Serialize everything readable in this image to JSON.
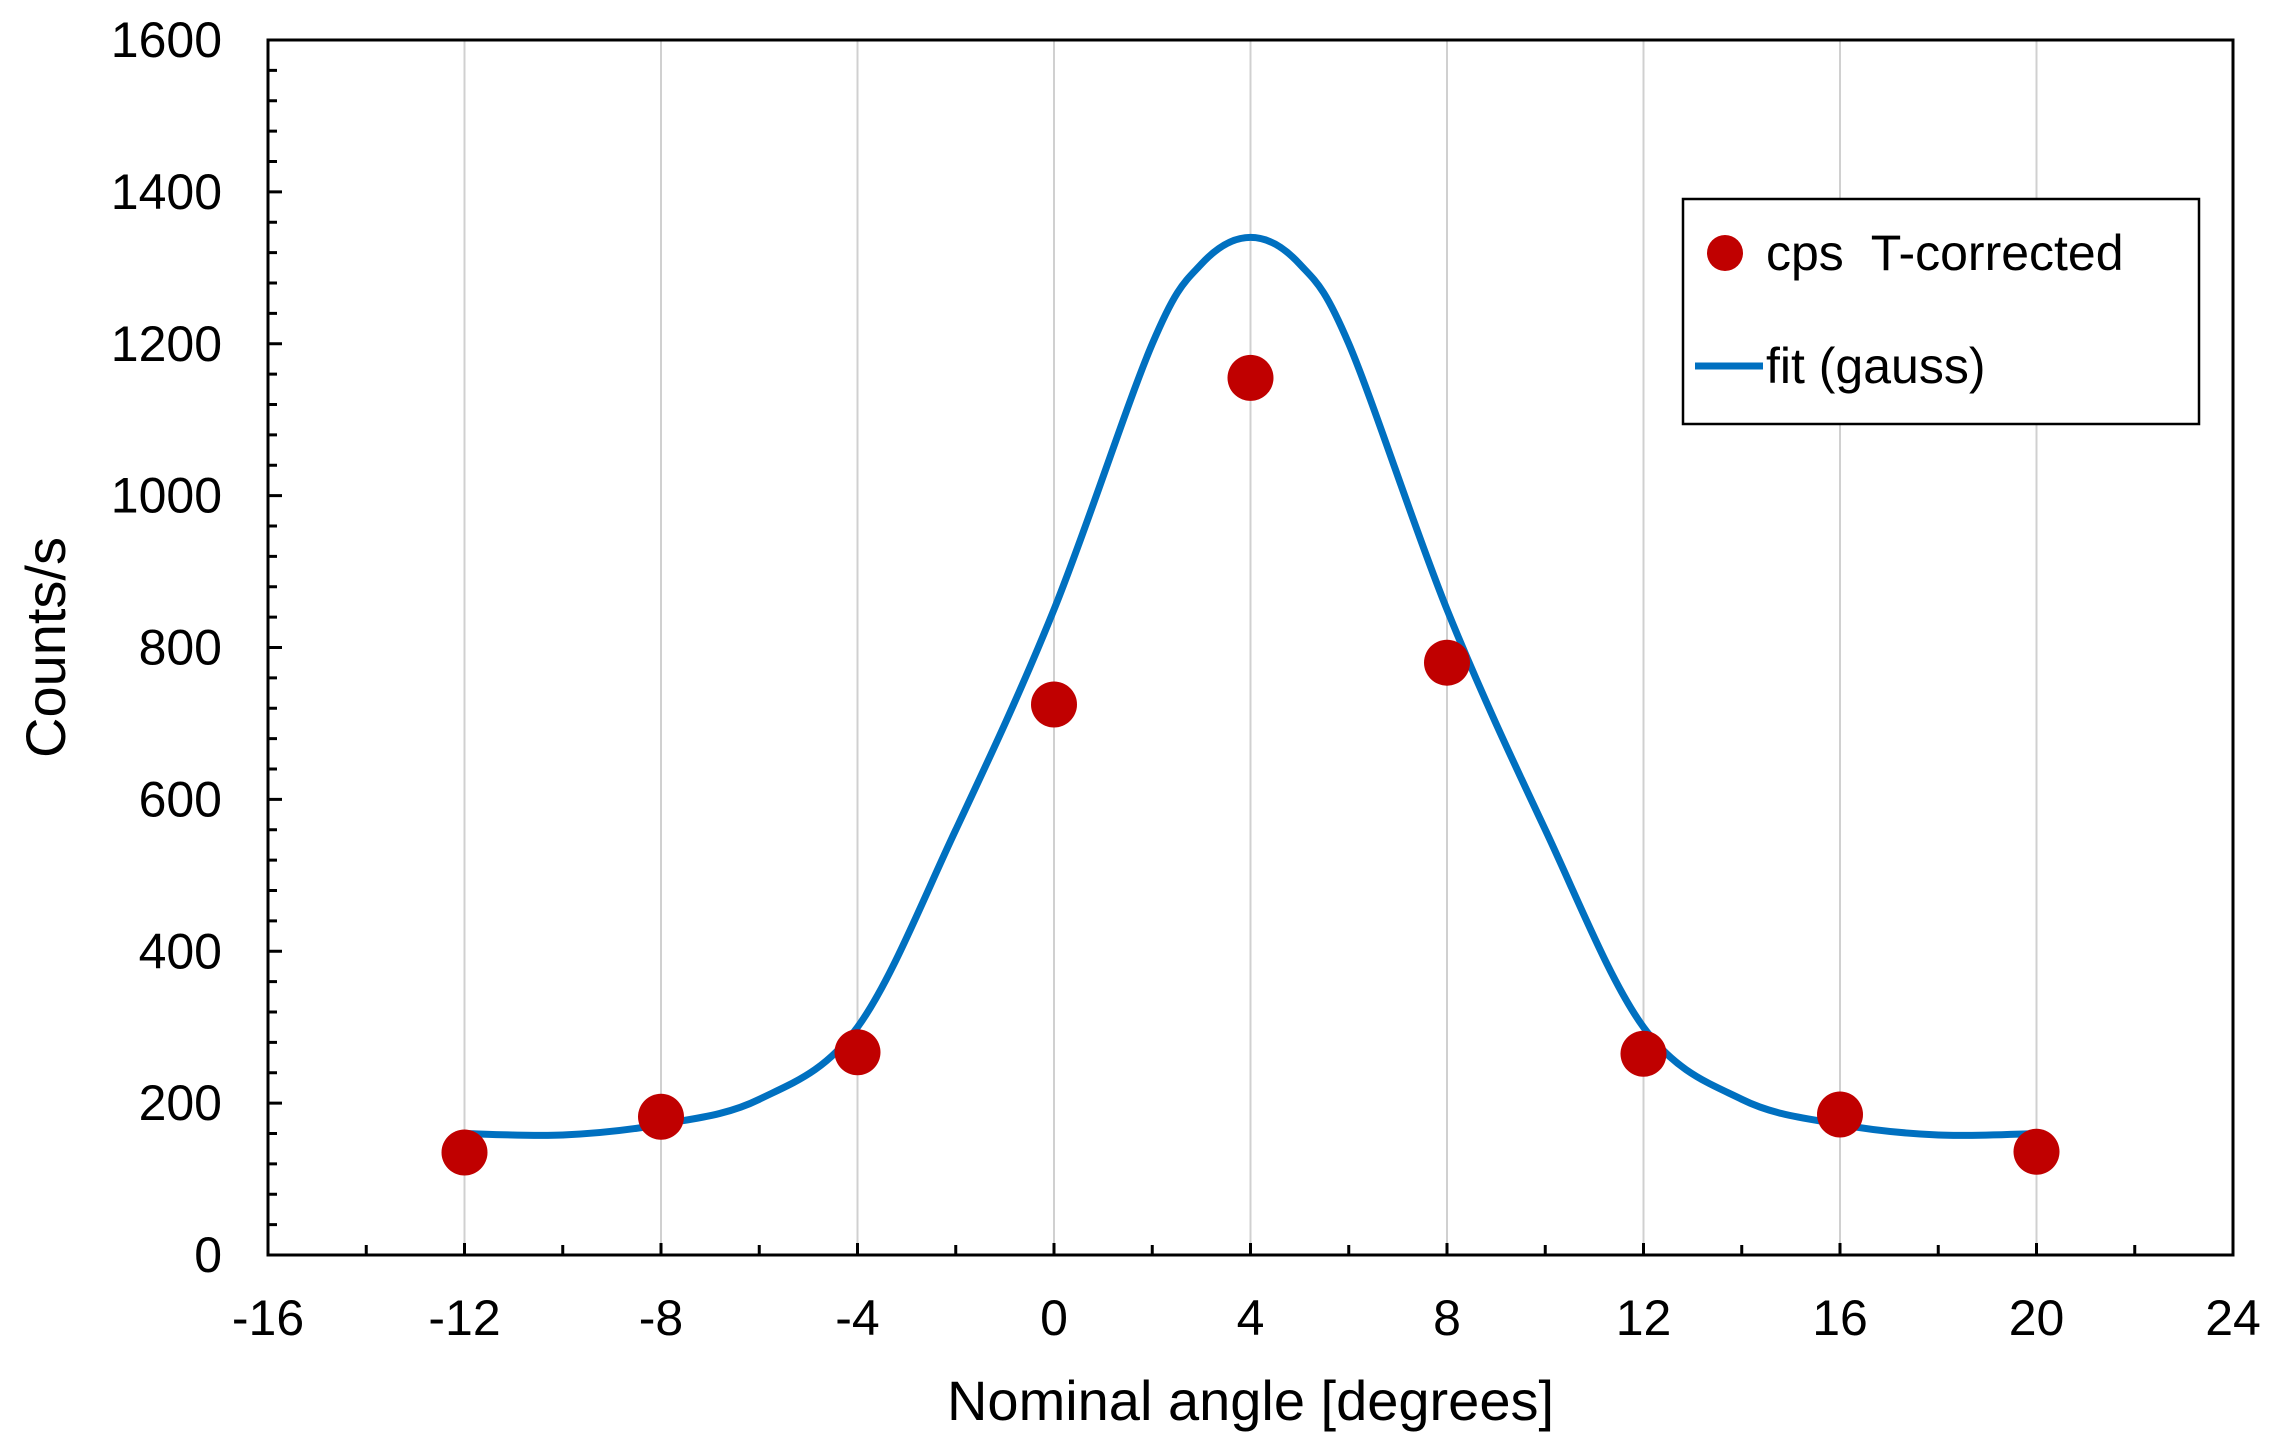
{
  "chart_data": {
    "type": "scatter",
    "title": "",
    "xlabel": "Nominal angle [degrees]",
    "ylabel": "Counts/s",
    "xlim": [
      -16,
      24
    ],
    "ylim": [
      0,
      1600
    ],
    "x_ticks": [
      -16,
      -12,
      -8,
      -4,
      0,
      4,
      8,
      12,
      16,
      20,
      24
    ],
    "y_ticks": [
      0,
      200,
      400,
      600,
      800,
      1000,
      1200,
      1400,
      1600
    ],
    "x_tick_labels": [
      "-16",
      "-12",
      "-8",
      "-4",
      "0",
      "4",
      "8",
      "12",
      "16",
      "20",
      "24"
    ],
    "y_tick_labels": [
      "0",
      "200",
      "400",
      "600",
      "800",
      "1000",
      "1200",
      "1400",
      "1600"
    ],
    "grid": "vertical",
    "legend_position": "top-right",
    "series": [
      {
        "name": "cps  T-corrected",
        "kind": "scatter",
        "color": "#C00000",
        "x": [
          -12,
          -8,
          -4,
          0,
          4,
          8,
          12,
          16,
          20
        ],
        "y": [
          135,
          182,
          267,
          725,
          1155,
          780,
          265,
          185,
          136
        ]
      },
      {
        "name": "fit (gauss)",
        "kind": "line",
        "color": "#0070C0",
        "x": [
          -12,
          -10,
          -8,
          -6,
          -4,
          -2,
          0,
          2,
          3,
          4,
          5,
          6,
          8,
          10,
          12,
          14,
          16,
          18,
          20
        ],
        "y": [
          160,
          158,
          172,
          205,
          300,
          560,
          850,
          1200,
          1305,
          1340,
          1305,
          1200,
          850,
          560,
          300,
          205,
          172,
          158,
          160
        ]
      }
    ]
  }
}
